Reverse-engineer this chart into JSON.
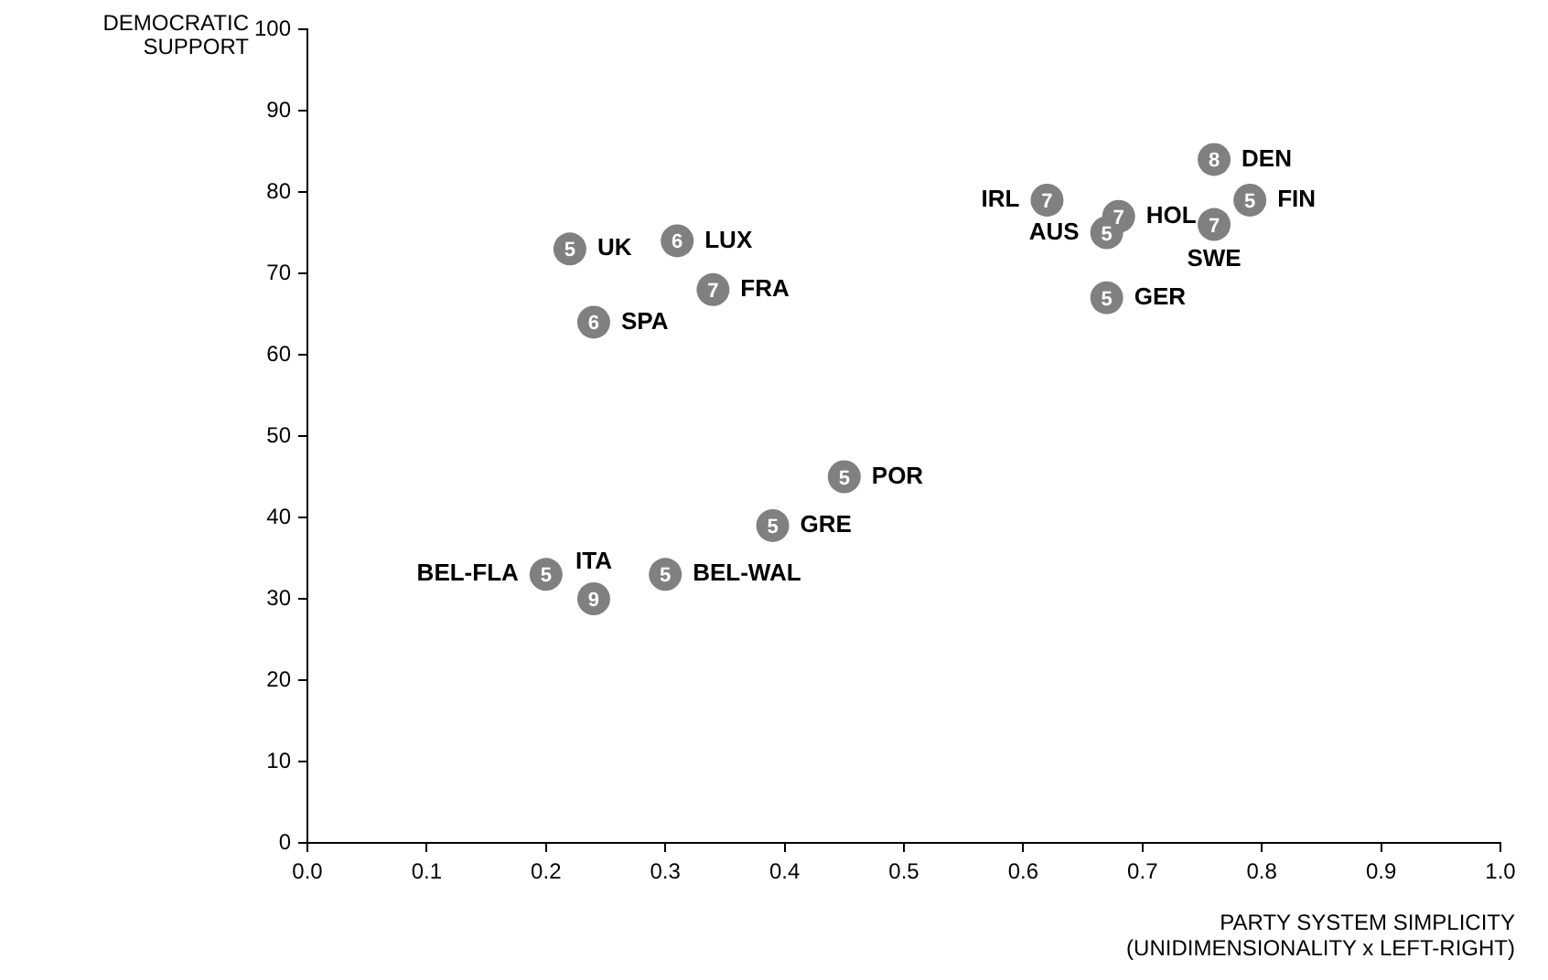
{
  "chart_data": {
    "type": "scatter",
    "xlabel": "PARTY SYSTEM SIMPLICITY\n(UNIDIMENSIONALITY x LEFT-RIGHT)",
    "ylabel": "DEMOCRATIC\nSUPPORT",
    "x": [
      0.22,
      0.31,
      0.34,
      0.24,
      0.45,
      0.39,
      0.2,
      0.24,
      0.3,
      0.62,
      0.68,
      0.67,
      0.67,
      0.76,
      0.79,
      0.76
    ],
    "series": [
      {
        "color": "#808080",
        "values": [
          73,
          74,
          68,
          64,
          45,
          39,
          33,
          30,
          33,
          79,
          77,
          75,
          67,
          84,
          79,
          76
        ]
      }
    ],
    "marker": "circle",
    "grid": false,
    "legend": false,
    "xlim": [
      0,
      1
    ],
    "xticks": [
      {
        "value": 0,
        "label": "0.0"
      },
      {
        "value": 0.1,
        "label": "0.1"
      },
      {
        "value": 0.2,
        "label": "0.2"
      },
      {
        "value": 0.3,
        "label": "0.3"
      },
      {
        "value": 0.4,
        "label": "0.4"
      },
      {
        "value": 0.5,
        "label": "0.5"
      },
      {
        "value": 0.6,
        "label": "0.6"
      },
      {
        "value": 0.7,
        "label": "0.7"
      },
      {
        "value": 0.8,
        "label": "0.8"
      },
      {
        "value": 0.9,
        "label": "0.9"
      },
      {
        "value": 1,
        "label": "1.0"
      }
    ],
    "ylim": [
      0,
      100
    ],
    "yticks": [
      0,
      10,
      20,
      30,
      40,
      50,
      60,
      70,
      80,
      90,
      100
    ],
    "annotations": [
      {
        "text": "UK",
        "x": 0.22,
        "y": 73
      },
      {
        "text": "LUX",
        "x": 0.31,
        "y": 74
      },
      {
        "text": "FRA",
        "x": 0.34,
        "y": 68
      },
      {
        "text": "SPA",
        "x": 0.24,
        "y": 64
      },
      {
        "text": "POR",
        "x": 0.45,
        "y": 45
      },
      {
        "text": "GRE",
        "x": 0.39,
        "y": 39
      },
      {
        "text": "BEL-FLA",
        "x": 0.2,
        "y": 33
      },
      {
        "text": "ITA",
        "x": 0.24,
        "y": 30
      },
      {
        "text": "BEL-WAL",
        "x": 0.3,
        "y": 33
      },
      {
        "text": "IRL",
        "x": 0.62,
        "y": 79
      },
      {
        "text": "HOL",
        "x": 0.68,
        "y": 77
      },
      {
        "text": "AUS",
        "x": 0.67,
        "y": 75
      },
      {
        "text": "GER",
        "x": 0.67,
        "y": 67
      },
      {
        "text": "DEN",
        "x": 0.76,
        "y": 84
      },
      {
        "text": "FIN",
        "x": 0.79,
        "y": 79
      },
      {
        "text": "SWE",
        "x": 0.76,
        "y": 76
      },
      {
        "text": "5",
        "x": 0.22,
        "y": 73
      },
      {
        "text": "6",
        "x": 0.31,
        "y": 74
      },
      {
        "text": "7",
        "x": 0.34,
        "y": 68
      },
      {
        "text": "6",
        "x": 0.24,
        "y": 64
      },
      {
        "text": "5",
        "x": 0.45,
        "y": 45
      },
      {
        "text": "5",
        "x": 0.39,
        "y": 39
      },
      {
        "text": "5",
        "x": 0.2,
        "y": 33
      },
      {
        "text": "9",
        "x": 0.24,
        "y": 30
      },
      {
        "text": "5",
        "x": 0.3,
        "y": 33
      },
      {
        "text": "7",
        "x": 0.62,
        "y": 79
      },
      {
        "text": "7",
        "x": 0.68,
        "y": 77
      },
      {
        "text": "5",
        "x": 0.67,
        "y": 75
      },
      {
        "text": "5",
        "x": 0.67,
        "y": 67
      },
      {
        "text": "8",
        "x": 0.76,
        "y": 84
      },
      {
        "text": "5",
        "x": 0.79,
        "y": 79
      },
      {
        "text": "7",
        "x": 0.76,
        "y": 76
      }
    ]
  }
}
